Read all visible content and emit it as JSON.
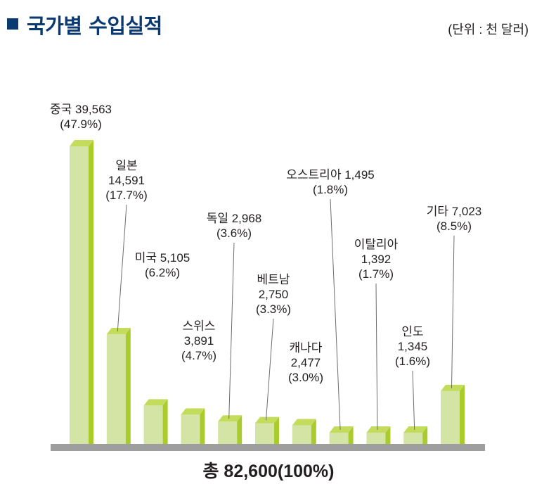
{
  "header": {
    "title": "국가별 수입실적",
    "unit": "(단위 : 천 달러)"
  },
  "total_label": "총 82,600(100%)",
  "colors": {
    "title": "#0b3a73",
    "bar_front": "#d4e4a4",
    "bar_side": "#a9cb2c",
    "bar_top": "#c3dc5c",
    "baseline": "#9e9e9e",
    "leader": "#6d6d6d"
  },
  "chart_data": {
    "type": "bar",
    "categories": [
      "중국",
      "일본",
      "미국",
      "스위스",
      "독일",
      "베트남",
      "캐나다",
      "오스트리아",
      "이탈리아",
      "인도",
      "기타"
    ],
    "values": [
      39563,
      14591,
      5105,
      3891,
      2968,
      2750,
      2477,
      1495,
      1392,
      1345,
      7023
    ],
    "percent_labels": [
      "(47.9%)",
      "(17.7%)",
      "(6.2%)",
      "(4.7%)",
      "(3.6%)",
      "(3.3%)",
      "(3.0%)",
      "(1.8%)",
      "(1.7%)",
      "(1.6%)",
      "(8.5%)"
    ],
    "data_labels": [
      [
        "중국 39,563",
        "(47.9%)"
      ],
      [
        "일본",
        "14,591",
        "(17.7%)"
      ],
      [
        "미국 5,105",
        "(6.2%)"
      ],
      [
        "스위스",
        "3,891",
        "(4.7%)"
      ],
      [
        "독일 2,968",
        "(3.6%)"
      ],
      [
        "베트남",
        "2,750",
        "(3.3%)"
      ],
      [
        "캐나다",
        "2,477",
        "(3.0%)"
      ],
      [
        "오스트리아 1,495",
        "(1.8%)"
      ],
      [
        "이탈리아",
        "1,392",
        "(1.7%)"
      ],
      [
        "인도",
        "1,345",
        "(1.6%)"
      ],
      [
        "기타 7,023",
        "(8.5%)"
      ]
    ],
    "title": "국가별 수입실적",
    "unit": "(단위 : 천 달러)",
    "total": "총 82,600(100%)",
    "xlabel": "",
    "ylabel": "",
    "grid": false,
    "legend": "none"
  }
}
